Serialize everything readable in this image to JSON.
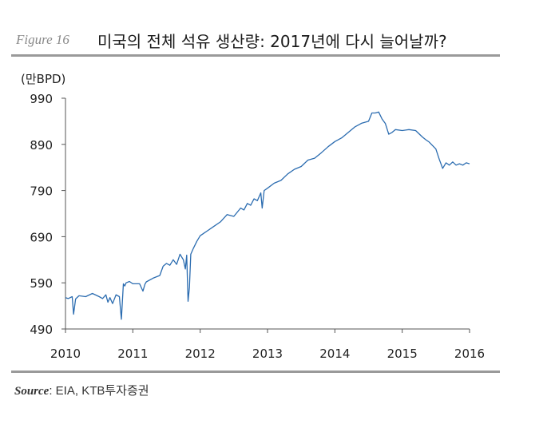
{
  "figure": {
    "label": "Figure 16",
    "title": "미국의 전체 석유 생산량: 2017년에 다시 늘어날까?"
  },
  "source": {
    "label": "Source",
    "text": ": EIA, KTB투자증권"
  },
  "chart_data": {
    "type": "line",
    "ylabel": "(만BPD)",
    "xlabel": "",
    "ylim": [
      490,
      990
    ],
    "xlim": [
      2010,
      2016
    ],
    "yticks": [
      990,
      890,
      790,
      690,
      590,
      490
    ],
    "xticks": [
      2010,
      2011,
      2012,
      2013,
      2014,
      2015,
      2016
    ],
    "grid": false,
    "legend": "none",
    "color": "#2b6cb0",
    "series": [
      {
        "x": [
          2010.0,
          2010.04,
          2010.1,
          2010.12,
          2010.15,
          2010.2,
          2010.3,
          2010.4,
          2010.5,
          2010.55,
          2010.6,
          2010.63,
          2010.66,
          2010.7,
          2010.75,
          2010.8,
          2010.83,
          2010.86,
          2010.88,
          2010.9,
          2010.95,
          2011.0,
          2011.1,
          2011.15,
          2011.18,
          2011.2,
          2011.3,
          2011.4,
          2011.45,
          2011.5,
          2011.55,
          2011.6,
          2011.65,
          2011.7,
          2011.75,
          2011.78,
          2011.8,
          2011.82,
          2011.84,
          2011.86,
          2011.9,
          2011.95,
          2012.0,
          2012.1,
          2012.2,
          2012.3,
          2012.4,
          2012.5,
          2012.6,
          2012.65,
          2012.7,
          2012.75,
          2012.8,
          2012.85,
          2012.9,
          2012.92,
          2012.95,
          2013.0,
          2013.1,
          2013.2,
          2013.3,
          2013.4,
          2013.5,
          2013.6,
          2013.7,
          2013.8,
          2013.9,
          2014.0,
          2014.1,
          2014.2,
          2014.3,
          2014.4,
          2014.5,
          2014.55,
          2014.6,
          2014.65,
          2014.7,
          2014.75,
          2014.8,
          2014.85,
          2014.9,
          2015.0,
          2015.1,
          2015.2,
          2015.3,
          2015.35,
          2015.4,
          2015.5,
          2015.55,
          2015.6,
          2015.65,
          2015.7,
          2015.75,
          2015.8,
          2015.85,
          2015.9,
          2015.95,
          2016.0
        ],
        "y": [
          558,
          556,
          560,
          522,
          555,
          562,
          560,
          567,
          560,
          556,
          564,
          548,
          558,
          545,
          564,
          560,
          511,
          588,
          583,
          590,
          593,
          588,
          588,
          572,
          587,
          592,
          600,
          606,
          626,
          632,
          628,
          640,
          630,
          652,
          640,
          620,
          650,
          550,
          580,
          652,
          665,
          680,
          692,
          702,
          712,
          722,
          738,
          734,
          752,
          748,
          762,
          758,
          772,
          768,
          785,
          752,
          790,
          795,
          806,
          812,
          826,
          836,
          842,
          856,
          860,
          872,
          885,
          896,
          904,
          916,
          928,
          936,
          940,
          958,
          958,
          960,
          945,
          935,
          912,
          916,
          922,
          920,
          922,
          920,
          906,
          900,
          895,
          880,
          858,
          838,
          850,
          845,
          852,
          845,
          848,
          845,
          850,
          848
        ]
      }
    ]
  }
}
